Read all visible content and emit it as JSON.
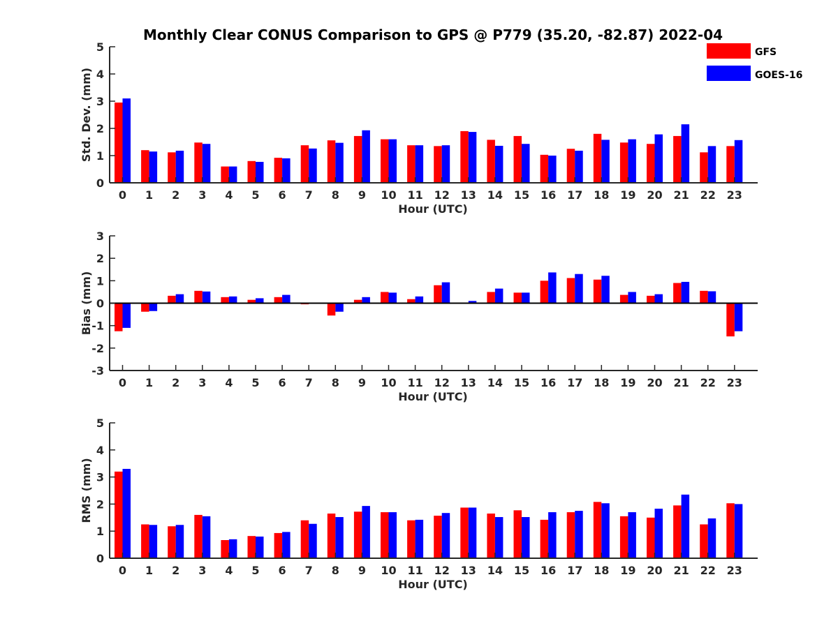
{
  "chart_data": {
    "type": "bar",
    "title": "Monthly Clear CONUS Comparison to GPS @ P779 (35.20, -82.87) 2022-04",
    "legend": {
      "placement": "top-right",
      "entries": [
        "GFS",
        "GOES-16"
      ]
    },
    "colors": {
      "GFS": "#ff0000",
      "GOES-16": "#0000ff"
    },
    "panels": [
      {
        "id": "std",
        "xlabel": "Hour (UTC)",
        "ylabel": "Std. Dev. (mm)",
        "ylim": [
          0,
          5
        ],
        "yticks": [
          0,
          1,
          2,
          3,
          4,
          5
        ],
        "categories": [
          "0",
          "1",
          "2",
          "3",
          "4",
          "5",
          "6",
          "7",
          "8",
          "9",
          "10",
          "11",
          "12",
          "13",
          "14",
          "15",
          "16",
          "17",
          "18",
          "19",
          "20",
          "21",
          "22",
          "23"
        ],
        "series": [
          {
            "name": "GFS",
            "values": [
              2.95,
              1.2,
              1.12,
              1.48,
              0.6,
              0.8,
              0.92,
              1.38,
              1.56,
              1.72,
              1.6,
              1.38,
              1.35,
              1.9,
              1.58,
              1.72,
              1.03,
              1.25,
              1.8,
              1.48,
              1.43,
              1.72,
              1.12,
              1.35
            ]
          },
          {
            "name": "GOES-16",
            "values": [
              3.1,
              1.15,
              1.18,
              1.43,
              0.6,
              0.77,
              0.9,
              1.26,
              1.47,
              1.93,
              1.6,
              1.38,
              1.38,
              1.87,
              1.36,
              1.43,
              1.0,
              1.18,
              1.58,
              1.6,
              1.78,
              2.15,
              1.35,
              1.57
            ]
          }
        ]
      },
      {
        "id": "bias",
        "xlabel": "Hour (UTC)",
        "ylabel": "Bias (mm)",
        "ylim": [
          -3,
          3
        ],
        "yticks": [
          -3,
          -2,
          -1,
          0,
          1,
          2,
          3
        ],
        "categories": [
          "0",
          "1",
          "2",
          "3",
          "4",
          "5",
          "6",
          "7",
          "8",
          "9",
          "10",
          "11",
          "12",
          "13",
          "14",
          "15",
          "16",
          "17",
          "18",
          "19",
          "20",
          "21",
          "22",
          "23"
        ],
        "series": [
          {
            "name": "GFS",
            "values": [
              -1.25,
              -0.38,
              0.33,
              0.55,
              0.27,
              0.15,
              0.27,
              -0.05,
              -0.55,
              0.15,
              0.5,
              0.18,
              0.8,
              0.0,
              0.5,
              0.47,
              1.0,
              1.12,
              1.05,
              0.37,
              0.33,
              0.9,
              0.55,
              -1.48
            ]
          },
          {
            "name": "GOES-16",
            "values": [
              -1.1,
              -0.35,
              0.4,
              0.52,
              0.3,
              0.22,
              0.37,
              0.0,
              -0.38,
              0.27,
              0.47,
              0.3,
              0.93,
              0.1,
              0.65,
              0.47,
              1.37,
              1.3,
              1.22,
              0.5,
              0.4,
              0.95,
              0.53,
              -1.25
            ]
          }
        ]
      },
      {
        "id": "rms",
        "xlabel": "Hour (UTC)",
        "ylabel": "RMS (mm)",
        "ylim": [
          0,
          5
        ],
        "yticks": [
          0,
          1,
          2,
          3,
          4,
          5
        ],
        "categories": [
          "0",
          "1",
          "2",
          "3",
          "4",
          "5",
          "6",
          "7",
          "8",
          "9",
          "10",
          "11",
          "12",
          "13",
          "14",
          "15",
          "16",
          "17",
          "18",
          "19",
          "20",
          "21",
          "22",
          "23"
        ],
        "series": [
          {
            "name": "GFS",
            "values": [
              3.2,
              1.25,
              1.18,
              1.6,
              0.67,
              0.82,
              0.93,
              1.4,
              1.65,
              1.72,
              1.7,
              1.4,
              1.57,
              1.87,
              1.65,
              1.77,
              1.42,
              1.7,
              2.08,
              1.55,
              1.5,
              1.95,
              1.25,
              2.03
            ]
          },
          {
            "name": "GOES-16",
            "values": [
              3.3,
              1.23,
              1.23,
              1.55,
              0.7,
              0.8,
              0.97,
              1.27,
              1.52,
              1.93,
              1.7,
              1.42,
              1.67,
              1.87,
              1.52,
              1.52,
              1.7,
              1.75,
              2.03,
              1.7,
              1.83,
              2.35,
              1.47,
              2.0
            ]
          }
        ]
      }
    ]
  }
}
